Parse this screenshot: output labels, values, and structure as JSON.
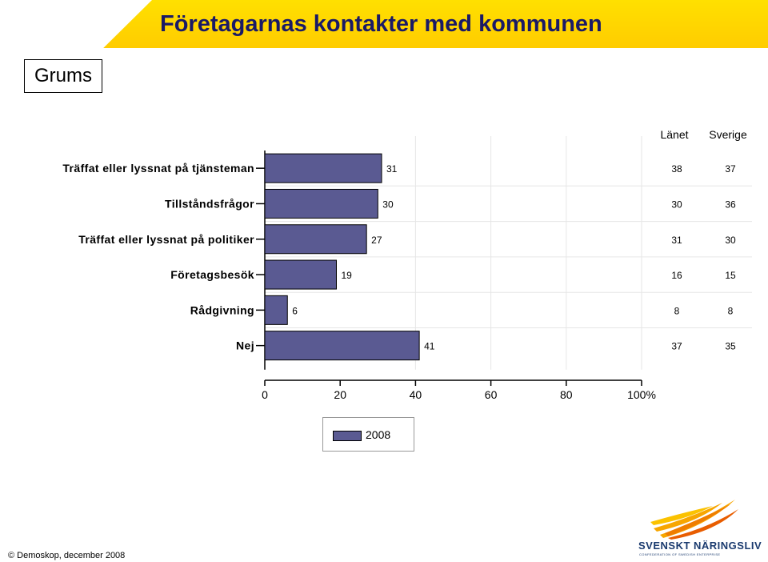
{
  "header": {
    "title": "Företagarnas kontakter med kommunen",
    "region": "Grums"
  },
  "chart_data": {
    "type": "bar",
    "orientation": "horizontal",
    "categories": [
      "Träffat eller lyssnat på tjänsteman",
      "Tillståndsfrågor",
      "Träffat eller lyssnat på politiker",
      "Företagsbesök",
      "Rådgivning",
      "Nej"
    ],
    "series": [
      {
        "name": "2008",
        "values": [
          31,
          30,
          27,
          19,
          6,
          41
        ],
        "color": "#5a5a92"
      }
    ],
    "xlim": [
      0,
      100
    ],
    "xticks": [
      "0",
      "20",
      "40",
      "60",
      "80",
      "100%"
    ],
    "xtick_values": [
      0,
      20,
      40,
      60,
      80,
      100
    ],
    "comparison_columns": [
      {
        "header": "Länet",
        "values": [
          38,
          30,
          31,
          16,
          8,
          37
        ]
      },
      {
        "header": "Sverige",
        "values": [
          37,
          36,
          30,
          15,
          8,
          35
        ]
      }
    ],
    "grid": true,
    "legend": "bottom-center"
  },
  "footer": {
    "copyright": "© Demoskop, december 2008"
  },
  "logo": {
    "text": "SVENSKT NÄRINGSLIV",
    "subtext": "CONFEDERATION OF SWEDISH ENTERPRISE"
  }
}
